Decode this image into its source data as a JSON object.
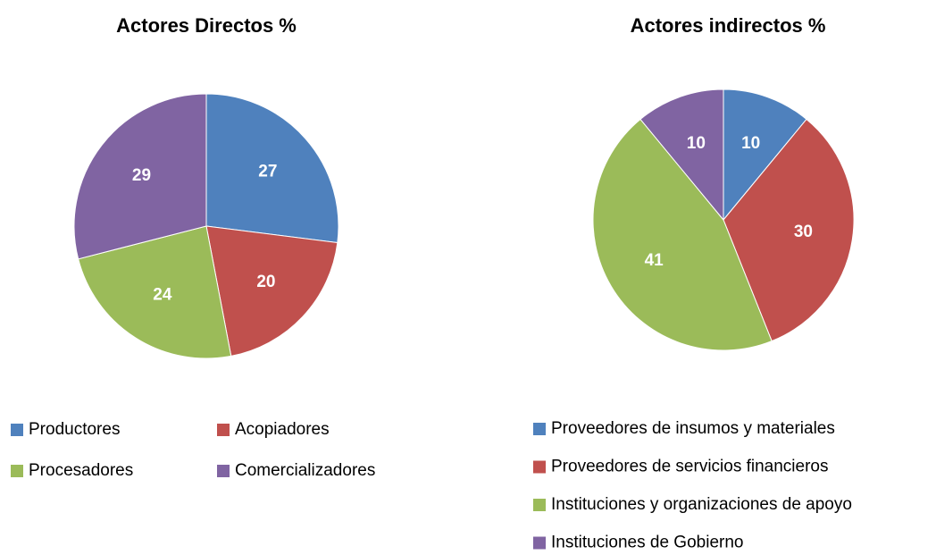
{
  "chart_data": [
    {
      "type": "pie",
      "title": "Actores Directos %",
      "categories": [
        "Productores",
        "Acopiadores",
        "Procesadores",
        "Comercializadores"
      ],
      "values": [
        27,
        20,
        24,
        29
      ],
      "colors": [
        "#4f81bd",
        "#c0504d",
        "#9bbb59",
        "#8064a2"
      ]
    },
    {
      "type": "pie",
      "title": "Actores indirectos %",
      "categories": [
        "Proveedores de insumos y materiales",
        "Proveedores de servicios financieros",
        "Instituciones y organizaciones de apoyo",
        "Instituciones de Gobierno"
      ],
      "values": [
        10,
        30,
        41,
        10
      ],
      "colors": [
        "#4f81bd",
        "#c0504d",
        "#9bbb59",
        "#8064a2"
      ]
    }
  ]
}
